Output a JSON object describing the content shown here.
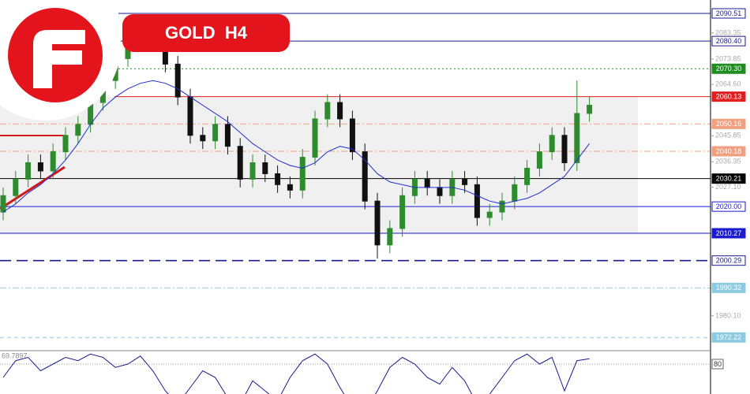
{
  "chart_data": {
    "type": "candlestick",
    "title": "GOLD  H4",
    "ylim": [
      1970,
      2095.4
    ],
    "yticks": [
      2083.35,
      2073.85,
      {
        "value": 2064.6,
        "label": "2064.60"
      },
      2045.85,
      2036.35,
      {
        "value": 2027.1,
        "label": "2027.10"
      },
      {
        "value": 1980.1,
        "label": "1980.10"
      }
    ],
    "grid": false,
    "up_color": "#2e8b2e",
    "down_color": "#111111",
    "open": [
      2018,
      2024,
      2030,
      2036,
      2033,
      2040,
      2046,
      2050,
      2058,
      2066,
      2074,
      2082,
      2080,
      2084,
      2072,
      2060,
      2046,
      2044,
      2050,
      2042,
      2030,
      2036,
      2032,
      2028,
      2026,
      2038,
      2052,
      2058,
      2052,
      2040,
      2022,
      2006,
      2012,
      2024,
      2030,
      2027,
      2024,
      2030,
      2028,
      2016,
      2018,
      2022,
      2028,
      2034,
      2040,
      2046,
      2036,
      2054
    ],
    "high": [
      2027,
      2033,
      2039,
      2039,
      2043,
      2049,
      2053,
      2061,
      2069,
      2077,
      2085,
      2086,
      2090,
      2087,
      2075,
      2063,
      2049,
      2053,
      2053,
      2045,
      2039,
      2039,
      2035,
      2031,
      2041,
      2055,
      2061,
      2061,
      2055,
      2043,
      2025,
      2015,
      2027,
      2033,
      2033,
      2030,
      2033,
      2033,
      2031,
      2021,
      2025,
      2031,
      2037,
      2043,
      2049,
      2049,
      2066,
      2060
    ],
    "low": [
      2015,
      2021,
      2027,
      2030,
      2030,
      2037,
      2043,
      2047,
      2055,
      2063,
      2071,
      2077,
      2077,
      2069,
      2057,
      2043,
      2041,
      2041,
      2039,
      2027,
      2027,
      2029,
      2025,
      2023,
      2023,
      2035,
      2049,
      2049,
      2037,
      2019,
      2001,
      2003,
      2009,
      2021,
      2024,
      2021,
      2021,
      2025,
      2013,
      2013,
      2015,
      2019,
      2025,
      2031,
      2037,
      2033,
      2033,
      2051
    ],
    "close": [
      2024,
      2030,
      2036,
      2033,
      2040,
      2046,
      2050,
      2058,
      2066,
      2074,
      2082,
      2080,
      2084,
      2072,
      2060,
      2046,
      2044,
      2050,
      2042,
      2030,
      2036,
      2032,
      2028,
      2026,
      2038,
      2052,
      2058,
      2052,
      2040,
      2022,
      2006,
      2012,
      2024,
      2030,
      2027,
      2024,
      2030,
      2028,
      2016,
      2018,
      2022,
      2028,
      2034,
      2040,
      2046,
      2036,
      2054,
      2057
    ],
    "ma": {
      "color": "#1f2fd0",
      "values": [
        2018,
        2021,
        2025,
        2028,
        2032,
        2037,
        2043,
        2050,
        2056,
        2060,
        2063,
        2065,
        2066,
        2065,
        2063,
        2060,
        2057,
        2054,
        2051,
        2047,
        2043,
        2040,
        2037,
        2035,
        2034,
        2036,
        2040,
        2042,
        2041,
        2037,
        2032,
        2029,
        2028,
        2027,
        2027,
        2027,
        2027,
        2026,
        2024,
        2022,
        2021,
        2022,
        2023,
        2025,
        2028,
        2031,
        2037,
        2043
      ]
    },
    "levels": [
      {
        "price": 2090.51,
        "color": "#1a1a8c",
        "line": "solid",
        "box": "outline"
      },
      {
        "price": 2080.4,
        "label": "2080.40",
        "color": "#1a1a8c",
        "line": "solid",
        "box": "outline"
      },
      {
        "price": 2070.3,
        "label": "2070.30",
        "color": "#1e8c1e",
        "line": "dotted",
        "box": "filled"
      },
      {
        "price": 2060.13,
        "color": "#e02020",
        "line": "solid",
        "box": "filled"
      },
      {
        "price": 2050.16,
        "color": "#f0a080",
        "line": "dashdot",
        "box": "filled"
      },
      {
        "price": 2040.18,
        "color": "#f0a080",
        "line": "dashdot",
        "box": "filled"
      },
      {
        "price": 2030.21,
        "color": "#000000",
        "line": "solid",
        "box": "filled"
      },
      {
        "price": 2020.0,
        "label": "2020.00",
        "color": "#1a1ad0",
        "line": "solid",
        "box": "outline"
      },
      {
        "price": 2010.27,
        "color": "#1a1ad0",
        "line": "solid",
        "box": "filled"
      },
      {
        "price": 2000.29,
        "color": "#1a1a8c",
        "line": "longdash",
        "box": "outline"
      },
      {
        "price": 1990.32,
        "color": "#8ccbe0",
        "line": "dashdot",
        "box": "filled"
      },
      {
        "price": 1972.22,
        "color": "#8ccbe0",
        "line": "dashed",
        "box": "filled"
      }
    ],
    "stochastic": {
      "reading": 69.7897,
      "ylim": [
        0,
        100
      ],
      "level": 80,
      "main_color": "#1a1a8c",
      "signal_color": "#d02020",
      "values": [
        60,
        85,
        90,
        70,
        80,
        90,
        85,
        95,
        90,
        75,
        80,
        92,
        70,
        40,
        20,
        45,
        70,
        60,
        30,
        20,
        55,
        40,
        25,
        60,
        85,
        95,
        80,
        45,
        15,
        10,
        40,
        75,
        90,
        80,
        60,
        50,
        75,
        55,
        20,
        35,
        60,
        85,
        95,
        80,
        90,
        40,
        85,
        88
      ]
    }
  }
}
